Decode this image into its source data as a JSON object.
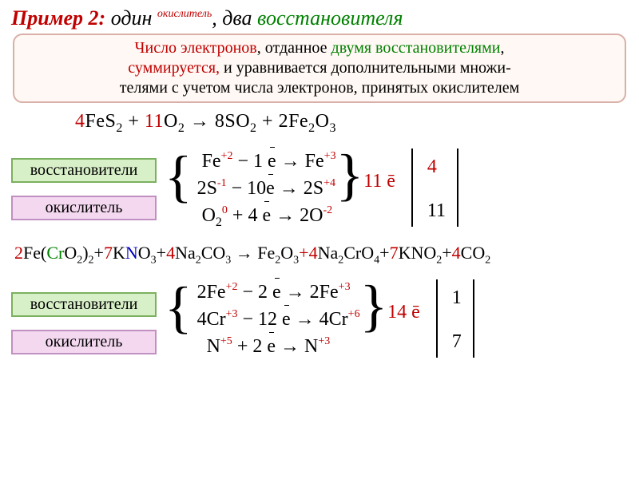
{
  "title": {
    "prefix": "Пример 2:",
    "mid": " один ",
    "ox": "окислитель",
    "sep": ", два ",
    "re": "восстановителя"
  },
  "rule": {
    "l1a": "Число электронов",
    "l1b": ", отданное ",
    "l1c": "двумя восстановителями",
    "l1d": ",",
    "l2a": "суммируется,",
    "l2b": " и уравнивается дополнительными множи-",
    "l3": "телями с учетом числа электронов, принятых окислителем"
  },
  "eq1": {
    "c4": "4",
    "feS2": "FeS",
    "s2": "2",
    "plus1": "  +  ",
    "c11": "11",
    "o2": "O",
    "arrow": " → ",
    "c8": "8",
    "so2": "SO",
    "plus2": " + ",
    "c2": "2",
    "fe2o3a": "Fe",
    "fe2o3b": "O",
    "sub3": "3"
  },
  "labels": {
    "red_pl": "восстановители",
    "ox_sg": "окислитель"
  },
  "half1": {
    "r1": {
      "a": "Fe",
      "ox_a": "+2",
      "m": "  −  1 ",
      "e": "e",
      "ar": " →   ",
      "b": "Fe",
      "ox_b": "+3"
    },
    "r2": {
      "a": "2S",
      "ox_a": "-1",
      "m": "  −  10",
      "e": "e",
      "ar": " →   ",
      "b": "2S",
      "ox_b": "+4"
    },
    "r3": {
      "a": "O",
      "sub": "2",
      "ox_a": "0",
      "m": "  +  4 ",
      "e": "e",
      "ar": "  →  ",
      "b": "2O",
      "ox_b": "-2"
    },
    "sum": "11 ē",
    "m1": "4",
    "m2": "11"
  },
  "eq2": {
    "t": "2Fe(CrO2)2+7KNO3+4Na2CO3 → Fe2O3+4Na2CrO4+7KNO2+4CO2",
    "c2a": "2",
    "fe": "Fe(",
    "cr": "Cr",
    "o2a": "O",
    "s2": "2",
    "br": ")",
    "p1": "+",
    "c7": "7",
    "k": "K",
    "n": "N",
    "o3": "O",
    "s3": "3",
    "c4": "4",
    "na": "Na",
    "co3": "CO",
    "arrow": " → ",
    "fe2": "Fe",
    "o": "O",
    "cro4": "CrO",
    "s4": "4",
    "kno2": "KNO",
    "co2": "CO"
  },
  "half2": {
    "r1": {
      "a": "2Fe",
      "ox_a": "+2",
      "m": "  −   2 ",
      "e": "e",
      "ar": " →  ",
      "b": "2Fe",
      "ox_b": "+3"
    },
    "r2": {
      "a": "4Cr",
      "ox_a": "+3",
      "m": "  −  12 ",
      "e": "e",
      "ar": " →  ",
      "b": "4Cr",
      "ox_b": "+6"
    },
    "r3": {
      "a": "N",
      "ox_a": "+5",
      "m": "    +   2 ",
      "e": "e",
      "ar": "  →   ",
      "b": "N",
      "ox_b": "+3"
    },
    "sum": "14 ē",
    "m1": "1",
    "m2": "7"
  }
}
